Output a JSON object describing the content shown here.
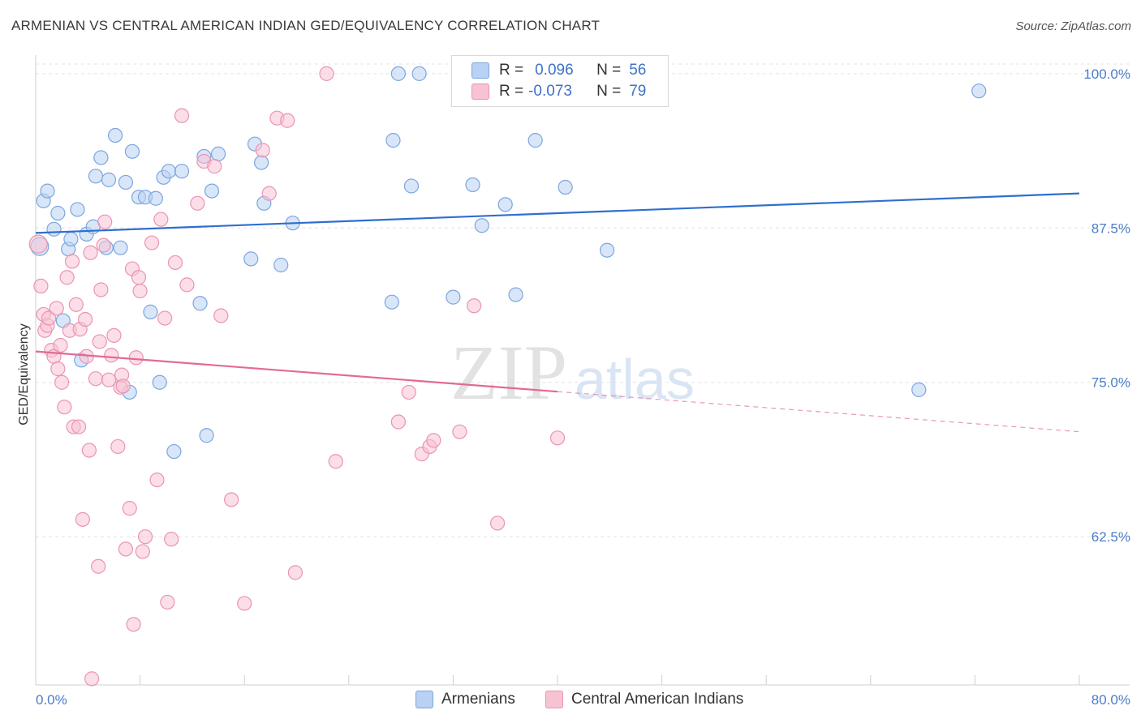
{
  "title": "ARMENIAN VS CENTRAL AMERICAN INDIAN GED/EQUIVALENCY CORRELATION CHART",
  "source": "Source: ZipAtlas.com",
  "watermark": {
    "zip": "ZIP",
    "atlas": "atlas"
  },
  "colors": {
    "blue_fill": "#b9d1f2",
    "blue_stroke": "#7aa6e0",
    "blue_line": "#2e6fcf",
    "pink_fill": "#f7c3d3",
    "pink_stroke": "#eb94b1",
    "pink_line": "#e26a95"
  },
  "legend": {
    "rows": [
      {
        "r_label": "R =",
        "r_value": "0.096",
        "n_label": "N =",
        "n_value": "56"
      },
      {
        "r_label": "R =",
        "r_value": "-0.073",
        "n_label": "N =",
        "n_value": "79"
      }
    ]
  },
  "bottom_legend": [
    "Armenians",
    "Central American Indians"
  ],
  "chart_data": {
    "type": "scatter",
    "title": "ARMENIAN VS CENTRAL AMERICAN INDIAN GED/EQUIVALENCY CORRELATION CHART",
    "xlabel": "",
    "ylabel": "GED/Equivalency",
    "xlim": [
      0,
      80
    ],
    "ylim": [
      50.5,
      101.5
    ],
    "x_ticks_labeled": [
      "0.0%",
      "80.0%"
    ],
    "y_ticks": [
      62.5,
      75.0,
      87.5,
      100.0
    ],
    "y_tick_labels": [
      "62.5%",
      "75.0%",
      "87.5%",
      "100.0%"
    ],
    "grid": true,
    "legend_position": "top-center",
    "series": [
      {
        "name": "Armenians",
        "r": 0.096,
        "n": 56,
        "trend": {
          "x0": 0,
          "y0": 87.1,
          "x1": 80,
          "y1": 90.3,
          "solid_to": 80
        },
        "points": [
          [
            0.3,
            86.0
          ],
          [
            0.6,
            89.7
          ],
          [
            0.9,
            90.5
          ],
          [
            1.4,
            87.4
          ],
          [
            1.7,
            88.7
          ],
          [
            2.1,
            80.0
          ],
          [
            2.5,
            85.8
          ],
          [
            2.7,
            86.6
          ],
          [
            3.2,
            89.0
          ],
          [
            3.5,
            76.8
          ],
          [
            3.9,
            87.0
          ],
          [
            4.4,
            87.6
          ],
          [
            4.6,
            91.7
          ],
          [
            5.0,
            93.2
          ],
          [
            5.4,
            85.9
          ],
          [
            5.6,
            91.4
          ],
          [
            6.1,
            95.0
          ],
          [
            6.5,
            85.9
          ],
          [
            6.9,
            91.2
          ],
          [
            7.2,
            74.2
          ],
          [
            7.4,
            93.7
          ],
          [
            7.9,
            90.0
          ],
          [
            8.4,
            90.0
          ],
          [
            8.8,
            80.7
          ],
          [
            9.2,
            89.9
          ],
          [
            9.5,
            75.0
          ],
          [
            9.8,
            91.6
          ],
          [
            10.2,
            92.1
          ],
          [
            10.6,
            69.4
          ],
          [
            11.2,
            92.1
          ],
          [
            12.6,
            81.4
          ],
          [
            12.9,
            93.3
          ],
          [
            13.1,
            70.7
          ],
          [
            13.5,
            90.5
          ],
          [
            14.0,
            93.5
          ],
          [
            16.5,
            85.0
          ],
          [
            16.8,
            94.3
          ],
          [
            17.3,
            92.8
          ],
          [
            17.5,
            89.5
          ],
          [
            18.8,
            84.5
          ],
          [
            19.7,
            87.9
          ],
          [
            27.3,
            81.5
          ],
          [
            27.4,
            94.6
          ],
          [
            27.8,
            100.0
          ],
          [
            28.8,
            90.9
          ],
          [
            29.4,
            100.0
          ],
          [
            32.0,
            81.9
          ],
          [
            33.5,
            91.0
          ],
          [
            34.2,
            87.7
          ],
          [
            36.0,
            89.4
          ],
          [
            36.8,
            82.1
          ],
          [
            38.3,
            94.6
          ],
          [
            40.6,
            90.8
          ],
          [
            43.8,
            85.7
          ],
          [
            67.7,
            74.4
          ],
          [
            72.3,
            98.6
          ]
        ]
      },
      {
        "name": "Central American Indians",
        "r": -0.073,
        "n": 79,
        "trend": {
          "x0": 0,
          "y0": 77.5,
          "x1": 80,
          "y1": 71.0,
          "solid_to": 40.0
        },
        "points": [
          [
            0.2,
            86.2
          ],
          [
            0.4,
            82.8
          ],
          [
            0.6,
            80.5
          ],
          [
            0.7,
            79.2
          ],
          [
            0.9,
            79.6
          ],
          [
            1.0,
            80.2
          ],
          [
            1.2,
            77.6
          ],
          [
            1.4,
            77.1
          ],
          [
            1.6,
            81.0
          ],
          [
            1.7,
            76.1
          ],
          [
            1.9,
            78.0
          ],
          [
            2.0,
            75.0
          ],
          [
            2.2,
            73.0
          ],
          [
            2.4,
            83.5
          ],
          [
            2.6,
            79.2
          ],
          [
            2.8,
            84.8
          ],
          [
            2.9,
            71.4
          ],
          [
            3.1,
            81.3
          ],
          [
            3.3,
            71.4
          ],
          [
            3.4,
            79.3
          ],
          [
            3.6,
            63.9
          ],
          [
            3.8,
            80.1
          ],
          [
            3.9,
            77.1
          ],
          [
            4.1,
            69.5
          ],
          [
            4.2,
            85.5
          ],
          [
            4.3,
            51.0
          ],
          [
            4.6,
            75.3
          ],
          [
            4.8,
            60.1
          ],
          [
            4.9,
            78.3
          ],
          [
            5.0,
            82.5
          ],
          [
            5.2,
            86.1
          ],
          [
            5.3,
            88.0
          ],
          [
            5.6,
            75.2
          ],
          [
            5.8,
            77.2
          ],
          [
            6.0,
            78.8
          ],
          [
            6.3,
            69.8
          ],
          [
            6.5,
            74.6
          ],
          [
            6.6,
            75.6
          ],
          [
            6.7,
            74.7
          ],
          [
            6.9,
            61.5
          ],
          [
            7.2,
            64.8
          ],
          [
            7.4,
            84.2
          ],
          [
            7.5,
            55.4
          ],
          [
            7.7,
            77.0
          ],
          [
            7.9,
            83.5
          ],
          [
            8.0,
            82.4
          ],
          [
            8.2,
            61.3
          ],
          [
            8.4,
            62.5
          ],
          [
            8.9,
            86.3
          ],
          [
            9.3,
            67.1
          ],
          [
            9.6,
            88.2
          ],
          [
            9.9,
            80.2
          ],
          [
            10.1,
            57.2
          ],
          [
            10.4,
            62.3
          ],
          [
            10.7,
            84.7
          ],
          [
            11.2,
            96.6
          ],
          [
            11.6,
            82.9
          ],
          [
            12.4,
            89.5
          ],
          [
            12.9,
            92.9
          ],
          [
            13.7,
            92.5
          ],
          [
            14.2,
            80.4
          ],
          [
            15.0,
            65.5
          ],
          [
            16.0,
            57.1
          ],
          [
            17.4,
            93.8
          ],
          [
            17.9,
            90.3
          ],
          [
            18.5,
            96.4
          ],
          [
            19.3,
            96.2
          ],
          [
            19.9,
            59.6
          ],
          [
            22.3,
            100.0
          ],
          [
            23.0,
            68.6
          ],
          [
            27.8,
            71.8
          ],
          [
            28.6,
            74.2
          ],
          [
            29.6,
            69.2
          ],
          [
            30.2,
            69.8
          ],
          [
            30.5,
            70.3
          ],
          [
            32.5,
            71.0
          ],
          [
            33.6,
            81.2
          ],
          [
            35.4,
            63.6
          ],
          [
            40.0,
            70.5
          ]
        ]
      }
    ]
  }
}
